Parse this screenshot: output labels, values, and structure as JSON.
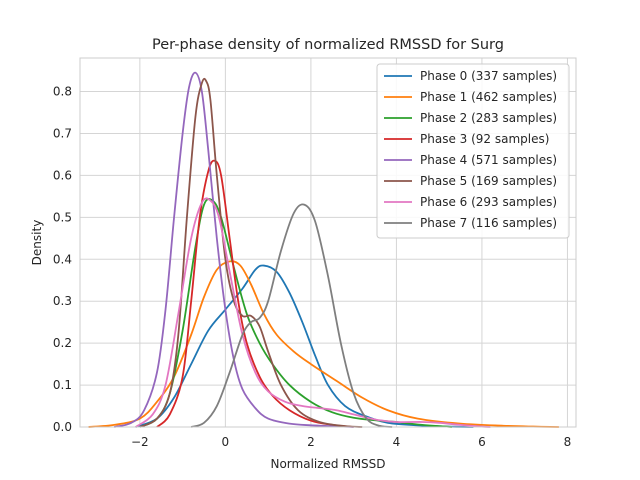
{
  "chart_data": {
    "type": "line",
    "title": "Per-phase density of normalized RMSSD for Surg",
    "xlabel": "Normalized RMSSD",
    "ylabel": "Density",
    "xlim": [
      -3.4,
      8.2
    ],
    "ylim": [
      0,
      0.88
    ],
    "xticks": [
      -2,
      0,
      2,
      4,
      6,
      8
    ],
    "xtick_labels": [
      "−2",
      "0",
      "2",
      "4",
      "6",
      "8"
    ],
    "yticks": [
      0.0,
      0.1,
      0.2,
      0.3,
      0.4,
      0.5,
      0.6,
      0.7,
      0.8
    ],
    "ytick_labels": [
      "0.0",
      "0.1",
      "0.2",
      "0.3",
      "0.4",
      "0.5",
      "0.6",
      "0.7",
      "0.8"
    ],
    "grid": true,
    "legend_position": "top-right",
    "series": [
      {
        "name": "Phase 0 (337 samples)",
        "color": "#1f77b4",
        "points": [
          [
            -2.1,
            0
          ],
          [
            -1.6,
            0.02
          ],
          [
            -1.2,
            0.07
          ],
          [
            -0.8,
            0.15
          ],
          [
            -0.4,
            0.23
          ],
          [
            0.0,
            0.28
          ],
          [
            0.4,
            0.33
          ],
          [
            0.7,
            0.375
          ],
          [
            0.9,
            0.385
          ],
          [
            1.2,
            0.37
          ],
          [
            1.5,
            0.32
          ],
          [
            1.8,
            0.25
          ],
          [
            2.1,
            0.17
          ],
          [
            2.4,
            0.1
          ],
          [
            2.8,
            0.05
          ],
          [
            3.3,
            0.025
          ],
          [
            3.8,
            0.01
          ],
          [
            4.5,
            0.004
          ],
          [
            5.2,
            0.001
          ],
          [
            5.8,
            0
          ]
        ]
      },
      {
        "name": "Phase 1 (462 samples)",
        "color": "#ff7f0e",
        "points": [
          [
            -3.2,
            0
          ],
          [
            -2.6,
            0.005
          ],
          [
            -2.0,
            0.02
          ],
          [
            -1.6,
            0.06
          ],
          [
            -1.2,
            0.12
          ],
          [
            -0.8,
            0.22
          ],
          [
            -0.5,
            0.31
          ],
          [
            -0.2,
            0.375
          ],
          [
            0.1,
            0.395
          ],
          [
            0.35,
            0.385
          ],
          [
            0.6,
            0.34
          ],
          [
            0.9,
            0.27
          ],
          [
            1.2,
            0.22
          ],
          [
            1.6,
            0.18
          ],
          [
            2.0,
            0.15
          ],
          [
            2.6,
            0.11
          ],
          [
            3.2,
            0.07
          ],
          [
            3.8,
            0.04
          ],
          [
            4.5,
            0.02
          ],
          [
            5.5,
            0.008
          ],
          [
            6.5,
            0.003
          ],
          [
            7.2,
            0.001
          ],
          [
            7.8,
            0
          ]
        ]
      },
      {
        "name": "Phase 2 (283 samples)",
        "color": "#2ca02c",
        "points": [
          [
            -2.0,
            0
          ],
          [
            -1.6,
            0.02
          ],
          [
            -1.3,
            0.08
          ],
          [
            -1.0,
            0.23
          ],
          [
            -0.7,
            0.43
          ],
          [
            -0.5,
            0.53
          ],
          [
            -0.3,
            0.54
          ],
          [
            -0.1,
            0.5
          ],
          [
            0.2,
            0.38
          ],
          [
            0.5,
            0.27
          ],
          [
            0.8,
            0.2
          ],
          [
            1.1,
            0.15
          ],
          [
            1.5,
            0.1
          ],
          [
            2.0,
            0.06
          ],
          [
            2.5,
            0.035
          ],
          [
            3.0,
            0.022
          ],
          [
            3.5,
            0.016
          ],
          [
            4.0,
            0.012
          ],
          [
            4.5,
            0.006
          ],
          [
            5.0,
            0.002
          ],
          [
            5.3,
            0
          ]
        ]
      },
      {
        "name": "Phase 3 (92 samples)",
        "color": "#d62728",
        "points": [
          [
            -1.6,
            0
          ],
          [
            -1.3,
            0.03
          ],
          [
            -1.0,
            0.12
          ],
          [
            -0.8,
            0.3
          ],
          [
            -0.6,
            0.5
          ],
          [
            -0.4,
            0.61
          ],
          [
            -0.25,
            0.635
          ],
          [
            -0.1,
            0.6
          ],
          [
            0.1,
            0.45
          ],
          [
            0.3,
            0.3
          ],
          [
            0.5,
            0.2
          ],
          [
            0.8,
            0.12
          ],
          [
            1.1,
            0.075
          ],
          [
            1.5,
            0.04
          ],
          [
            2.0,
            0.015
          ],
          [
            2.5,
            0.005
          ],
          [
            3.0,
            0
          ]
        ]
      },
      {
        "name": "Phase 4 (571 samples)",
        "color": "#9467bd",
        "points": [
          [
            -2.6,
            0
          ],
          [
            -2.2,
            0.01
          ],
          [
            -1.9,
            0.04
          ],
          [
            -1.6,
            0.13
          ],
          [
            -1.4,
            0.28
          ],
          [
            -1.2,
            0.5
          ],
          [
            -1.0,
            0.7
          ],
          [
            -0.85,
            0.81
          ],
          [
            -0.7,
            0.845
          ],
          [
            -0.55,
            0.8
          ],
          [
            -0.4,
            0.66
          ],
          [
            -0.2,
            0.45
          ],
          [
            0.0,
            0.28
          ],
          [
            0.2,
            0.16
          ],
          [
            0.4,
            0.09
          ],
          [
            0.7,
            0.045
          ],
          [
            1.0,
            0.02
          ],
          [
            1.5,
            0.008
          ],
          [
            2.0,
            0.004
          ],
          [
            2.5,
            0.002
          ],
          [
            3.0,
            0
          ]
        ]
      },
      {
        "name": "Phase 5 (169 samples)",
        "color": "#8c564b",
        "points": [
          [
            -2.0,
            0
          ],
          [
            -1.6,
            0.02
          ],
          [
            -1.3,
            0.08
          ],
          [
            -1.1,
            0.22
          ],
          [
            -0.9,
            0.5
          ],
          [
            -0.7,
            0.74
          ],
          [
            -0.55,
            0.82
          ],
          [
            -0.45,
            0.825
          ],
          [
            -0.35,
            0.78
          ],
          [
            -0.2,
            0.6
          ],
          [
            0.0,
            0.4
          ],
          [
            0.2,
            0.3
          ],
          [
            0.4,
            0.265
          ],
          [
            0.6,
            0.265
          ],
          [
            0.8,
            0.24
          ],
          [
            1.0,
            0.18
          ],
          [
            1.3,
            0.1
          ],
          [
            1.7,
            0.04
          ],
          [
            2.2,
            0.012
          ],
          [
            2.8,
            0.002
          ],
          [
            3.2,
            0
          ]
        ]
      },
      {
        "name": "Phase 6 (293 samples)",
        "color": "#e377c2",
        "points": [
          [
            -2.1,
            0
          ],
          [
            -1.7,
            0.03
          ],
          [
            -1.4,
            0.1
          ],
          [
            -1.1,
            0.27
          ],
          [
            -0.8,
            0.45
          ],
          [
            -0.55,
            0.535
          ],
          [
            -0.35,
            0.54
          ],
          [
            -0.15,
            0.5
          ],
          [
            0.1,
            0.37
          ],
          [
            0.4,
            0.22
          ],
          [
            0.7,
            0.13
          ],
          [
            1.0,
            0.085
          ],
          [
            1.4,
            0.06
          ],
          [
            1.8,
            0.05
          ],
          [
            2.2,
            0.045
          ],
          [
            2.6,
            0.04
          ],
          [
            3.0,
            0.03
          ],
          [
            3.5,
            0.018
          ],
          [
            4.0,
            0.012
          ],
          [
            4.6,
            0.012
          ],
          [
            5.0,
            0.01
          ],
          [
            5.5,
            0.005
          ],
          [
            6.0,
            0.001
          ],
          [
            6.2,
            0
          ]
        ]
      },
      {
        "name": "Phase 7 (116 samples)",
        "color": "#7f7f7f",
        "points": [
          [
            -0.8,
            0
          ],
          [
            -0.5,
            0.01
          ],
          [
            -0.2,
            0.05
          ],
          [
            0.1,
            0.13
          ],
          [
            0.4,
            0.22
          ],
          [
            0.6,
            0.25
          ],
          [
            0.8,
            0.26
          ],
          [
            1.0,
            0.3
          ],
          [
            1.3,
            0.42
          ],
          [
            1.6,
            0.51
          ],
          [
            1.85,
            0.53
          ],
          [
            2.1,
            0.49
          ],
          [
            2.4,
            0.36
          ],
          [
            2.7,
            0.2
          ],
          [
            3.0,
            0.08
          ],
          [
            3.3,
            0.02
          ],
          [
            3.6,
            0.003
          ],
          [
            3.9,
            0
          ]
        ]
      }
    ]
  }
}
